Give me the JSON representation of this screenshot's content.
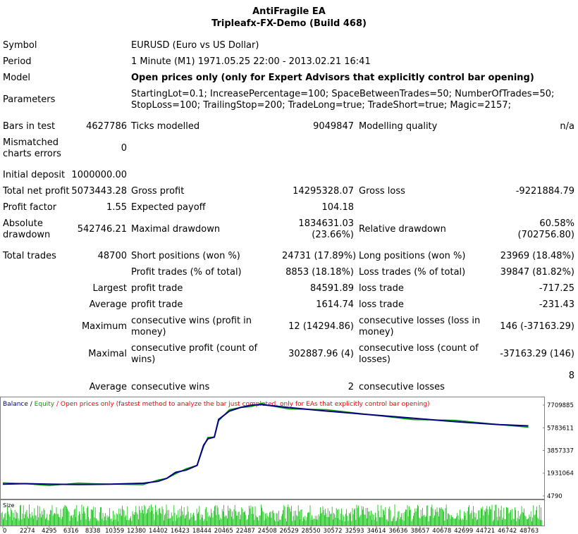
{
  "header": {
    "title": "AntiFragile EA",
    "subtitle": "Tripleafx-FX-Demo (Build 468)"
  },
  "info": {
    "symbol_label": "Symbol",
    "symbol_value": "EURUSD (Euro vs US Dollar)",
    "period_label": "Period",
    "period_value": "1 Minute (M1) 1971.05.25 22:00 - 2013.02.21 16:41",
    "model_label": "Model",
    "model_value": "Open prices only (only for Expert Advisors that explicitly control bar opening)",
    "parameters_label": "Parameters",
    "parameters_line1": "StartingLot=0.1; IncreasePercentage=100; SpaceBetweenTrades=50; NumberOfTrades=50;",
    "parameters_line2": "StopLoss=100; TrailingStop=200; TradeLong=true; TradeShort=true; Magic=2157;"
  },
  "stats": {
    "bars_label": "Bars in test",
    "bars_value": "4627786",
    "ticks_label": "Ticks modelled",
    "ticks_value": "9049847",
    "quality_label": "Modelling quality",
    "quality_value": "n/a",
    "mismatch_label1": "Mismatched",
    "mismatch_label2": "charts errors",
    "mismatch_value": "0",
    "deposit_label": "Initial deposit",
    "deposit_value": "1000000.00",
    "net_label": "Total net profit",
    "net_value": "5073443.28",
    "gross_profit_label": "Gross profit",
    "gross_profit_value": "14295328.07",
    "gross_loss_label": "Gross loss",
    "gross_loss_value": "-9221884.79",
    "pf_label": "Profit factor",
    "pf_value": "1.55",
    "ep_label": "Expected payoff",
    "ep_value": "104.18",
    "abs_dd_label1": "Absolute",
    "abs_dd_label2": "drawdown",
    "abs_dd_value": "542746.21",
    "max_dd_label": "Maximal drawdown",
    "max_dd_value1": "1834631.03",
    "max_dd_value2": "(23.66%)",
    "rel_dd_label": "Relative drawdown",
    "rel_dd_value1": "60.58%",
    "rel_dd_value2": "(702756.80)",
    "trades_label": "Total trades",
    "trades_value": "48700",
    "short_label": "Short positions (won %)",
    "short_value": "24731 (17.89%)",
    "long_label": "Long positions (won %)",
    "long_value": "23969 (18.48%)",
    "pt_label": "Profit trades (% of total)",
    "pt_value": "8853 (18.18%)",
    "lt_label": "Loss trades (% of total)",
    "lt_value": "39847 (81.82%)",
    "largest_label": "Largest",
    "largest_pt_label": "profit trade",
    "largest_pt_value": "84591.89",
    "largest_lt_label": "loss trade",
    "largest_lt_value": "-717.25",
    "average_label": "Average",
    "average_pt_label": "profit trade",
    "average_pt_value": "1614.74",
    "average_lt_label": "loss trade",
    "average_lt_value": "-231.43",
    "maximum_label": "Maximum",
    "max_cw_label1": "consecutive wins (profit in",
    "max_cw_label2": "money)",
    "max_cw_value": "12 (14294.86)",
    "max_cl_label1": "consecutive losses (loss in",
    "max_cl_label2": "money)",
    "max_cl_value": "146 (-37163.29)",
    "maximal_label": "Maximal",
    "mx_cp_label1": "consecutive profit (count of",
    "mx_cp_label2": "wins)",
    "mx_cp_value": "302887.96 (4)",
    "mx_cl_label1": "consecutive loss (count of",
    "mx_cl_label2": "losses)",
    "mx_cl_value": "-37163.29 (146)",
    "avg2_label": "Average",
    "avg_cw_label": "consecutive wins",
    "avg_cw_value": "2",
    "avg_cl_label": "consecutive losses",
    "avg_cl_value": "8"
  },
  "chart_data": {
    "type": "line",
    "legend": {
      "balance": "Balance",
      "sep": " / ",
      "equity": "Equity",
      "rest": " / Open prices only (fastest method to analyze the bar just completed, only for EAs that explicitly control bar opening)"
    },
    "colors": {
      "balance": "#000080",
      "equity": "#00a000",
      "legend_text": "#ff0000",
      "size_bars": "#00c000"
    },
    "y_ticks": [
      "7709885",
      "5783611",
      "3857337",
      "1931064",
      "4790"
    ],
    "y_tick_values": [
      7709885,
      5783611,
      3857337,
      1931064,
      4790
    ],
    "ylim": [
      4790,
      7709885
    ],
    "x_ticks": [
      "0",
      "2274",
      "4295",
      "6316",
      "8338",
      "10359",
      "12380",
      "14402",
      "16423",
      "18444",
      "20465",
      "22487",
      "24508",
      "26529",
      "28550",
      "30572",
      "32593",
      "34614",
      "36636",
      "38657",
      "40678",
      "42699",
      "44721",
      "46742",
      "48763"
    ],
    "xlim": [
      0,
      49900
    ],
    "balance_x": [
      0,
      2000,
      4300,
      7000,
      10000,
      13000,
      14400,
      15200,
      16000,
      17000,
      18000,
      18600,
      19000,
      19600,
      20000,
      21000,
      22000,
      23000,
      24000,
      24508,
      26500,
      30000,
      34000,
      38000,
      42000,
      46000,
      48700
    ],
    "balance_y": [
      1000000,
      1050000,
      1000000,
      970000,
      1000000,
      1080000,
      1250000,
      1500000,
      2000000,
      2200000,
      2600000,
      4300000,
      4850000,
      5000000,
      6500000,
      7200000,
      7500000,
      7700000,
      7750000,
      7700000,
      7500000,
      7200000,
      6900000,
      6600000,
      6300000,
      6050000,
      5950000
    ],
    "size_label": "Size"
  }
}
